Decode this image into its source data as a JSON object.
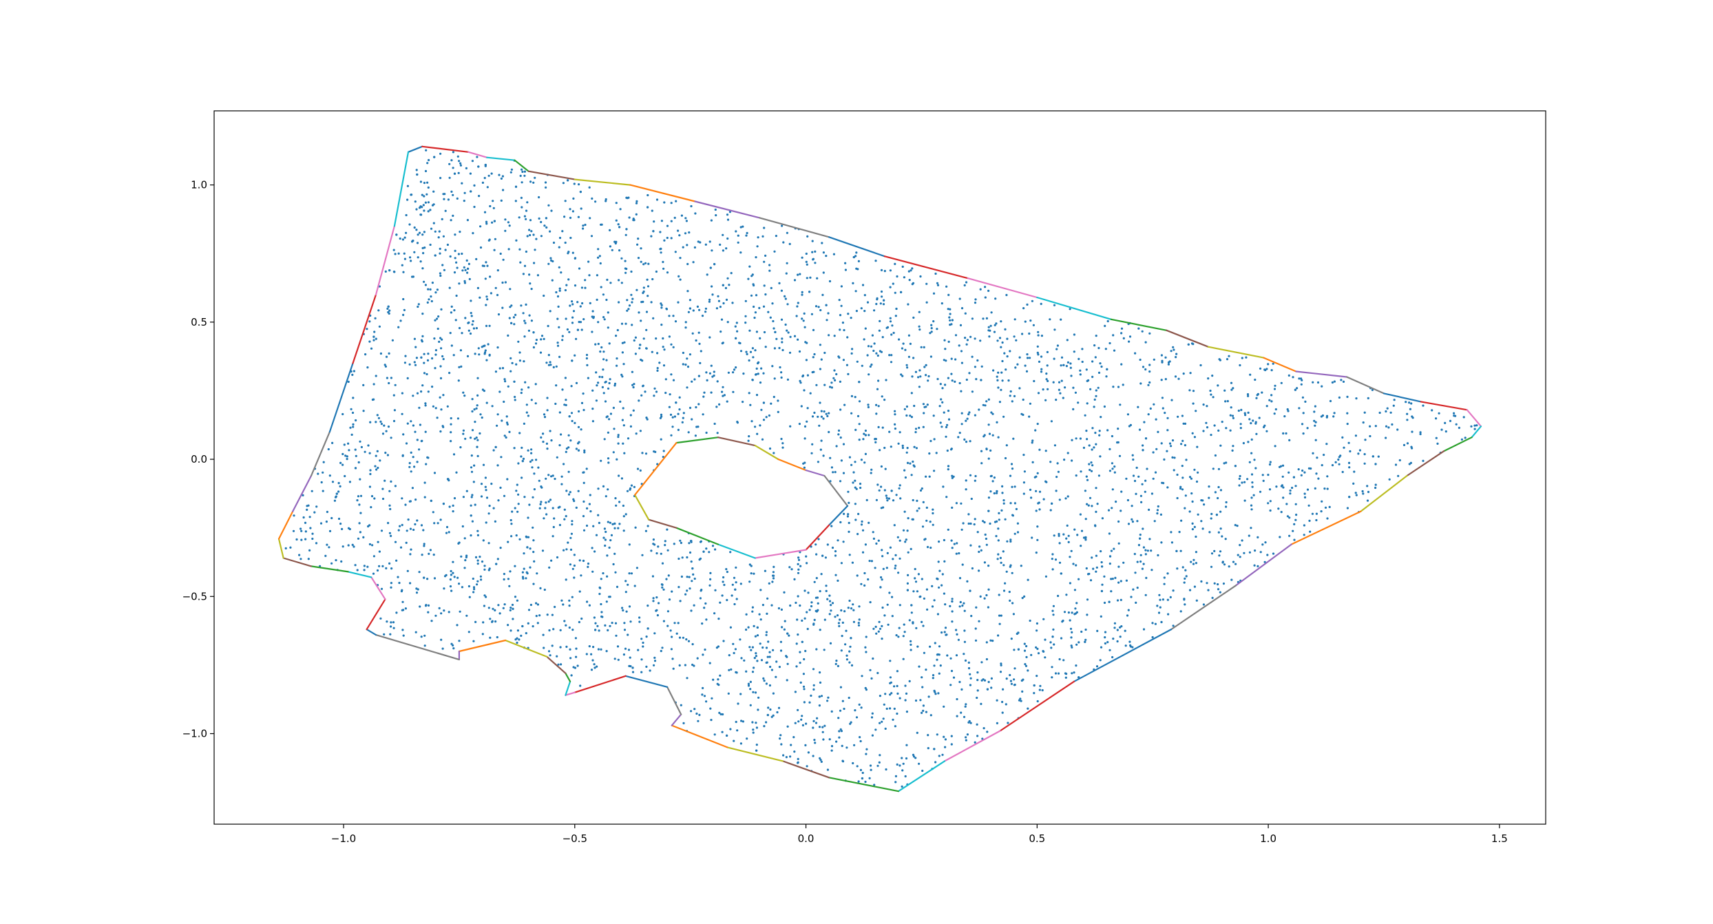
{
  "chart_data": {
    "type": "scatter",
    "title": "",
    "xlabel": "",
    "ylabel": "",
    "xlim": [
      -1.28,
      1.6
    ],
    "ylim": [
      -1.33,
      1.27
    ],
    "x_ticks": [
      -1.0,
      -0.5,
      0.0,
      0.5,
      1.0,
      1.5
    ],
    "x_tick_labels": [
      "−1.0",
      "−0.5",
      "0.0",
      "0.5",
      "1.0",
      "1.5"
    ],
    "y_ticks": [
      1.0,
      0.5,
      0.0,
      -0.5,
      -1.0
    ],
    "y_tick_labels": [
      "1.0",
      "0.5",
      "0.0",
      "−0.5",
      "−1.0"
    ],
    "grid": false,
    "legend": "none",
    "point_color": "#1f77b4",
    "point_count_approx": 4500,
    "edge_colors": [
      "#1f77b4",
      "#ff7f0e",
      "#2ca02c",
      "#d62728",
      "#9467bd",
      "#8c564b",
      "#e377c2",
      "#7f7f7f",
      "#bcbd22",
      "#17becf"
    ],
    "outer_boundary": [
      [
        -0.86,
        1.12
      ],
      [
        -0.83,
        1.14
      ],
      [
        -0.73,
        1.12
      ],
      [
        -0.69,
        1.1
      ],
      [
        -0.63,
        1.09
      ],
      [
        -0.6,
        1.05
      ],
      [
        -0.5,
        1.02
      ],
      [
        -0.38,
        1.0
      ],
      [
        -0.24,
        0.94
      ],
      [
        -0.1,
        0.88
      ],
      [
        0.05,
        0.81
      ],
      [
        0.17,
        0.74
      ],
      [
        0.35,
        0.66
      ],
      [
        0.5,
        0.59
      ],
      [
        0.66,
        0.51
      ],
      [
        0.78,
        0.47
      ],
      [
        0.87,
        0.41
      ],
      [
        0.99,
        0.37
      ],
      [
        1.06,
        0.32
      ],
      [
        1.17,
        0.3
      ],
      [
        1.25,
        0.24
      ],
      [
        1.33,
        0.21
      ],
      [
        1.43,
        0.18
      ],
      [
        1.46,
        0.12
      ],
      [
        1.44,
        0.08
      ],
      [
        1.38,
        0.03
      ],
      [
        1.3,
        -0.06
      ],
      [
        1.2,
        -0.19
      ],
      [
        1.05,
        -0.31
      ],
      [
        0.93,
        -0.46
      ],
      [
        0.79,
        -0.62
      ],
      [
        0.58,
        -0.81
      ],
      [
        0.42,
        -0.99
      ],
      [
        0.3,
        -1.1
      ],
      [
        0.2,
        -1.21
      ],
      [
        0.05,
        -1.16
      ],
      [
        -0.05,
        -1.1
      ],
      [
        -0.17,
        -1.05
      ],
      [
        -0.29,
        -0.97
      ],
      [
        -0.27,
        -0.93
      ],
      [
        -0.3,
        -0.83
      ],
      [
        -0.39,
        -0.79
      ],
      [
        -0.5,
        -0.85
      ],
      [
        -0.52,
        -0.86
      ],
      [
        -0.51,
        -0.81
      ],
      [
        -0.52,
        -0.78
      ],
      [
        -0.56,
        -0.72
      ],
      [
        -0.65,
        -0.66
      ],
      [
        -0.75,
        -0.7
      ],
      [
        -0.75,
        -0.73
      ],
      [
        -0.93,
        -0.64
      ],
      [
        -0.95,
        -0.62
      ],
      [
        -0.91,
        -0.51
      ],
      [
        -0.94,
        -0.43
      ],
      [
        -0.99,
        -0.41
      ],
      [
        -1.07,
        -0.39
      ],
      [
        -1.13,
        -0.36
      ],
      [
        -1.14,
        -0.29
      ],
      [
        -1.11,
        -0.19
      ],
      [
        -1.07,
        -0.06
      ],
      [
        -1.03,
        0.1
      ],
      [
        -0.98,
        0.35
      ],
      [
        -0.93,
        0.6
      ],
      [
        -0.89,
        0.85
      ],
      [
        -0.86,
        1.12
      ]
    ],
    "inner_boundary": [
      [
        -0.28,
        0.06
      ],
      [
        -0.19,
        0.08
      ],
      [
        -0.11,
        0.05
      ],
      [
        -0.06,
        0.0
      ],
      [
        0.0,
        -0.04
      ],
      [
        0.04,
        -0.06
      ],
      [
        0.09,
        -0.17
      ],
      [
        0.05,
        -0.24
      ],
      [
        0.0,
        -0.33
      ],
      [
        -0.11,
        -0.36
      ],
      [
        -0.19,
        -0.31
      ],
      [
        -0.28,
        -0.25
      ],
      [
        -0.34,
        -0.22
      ],
      [
        -0.37,
        -0.13
      ],
      [
        -0.28,
        0.06
      ]
    ]
  }
}
